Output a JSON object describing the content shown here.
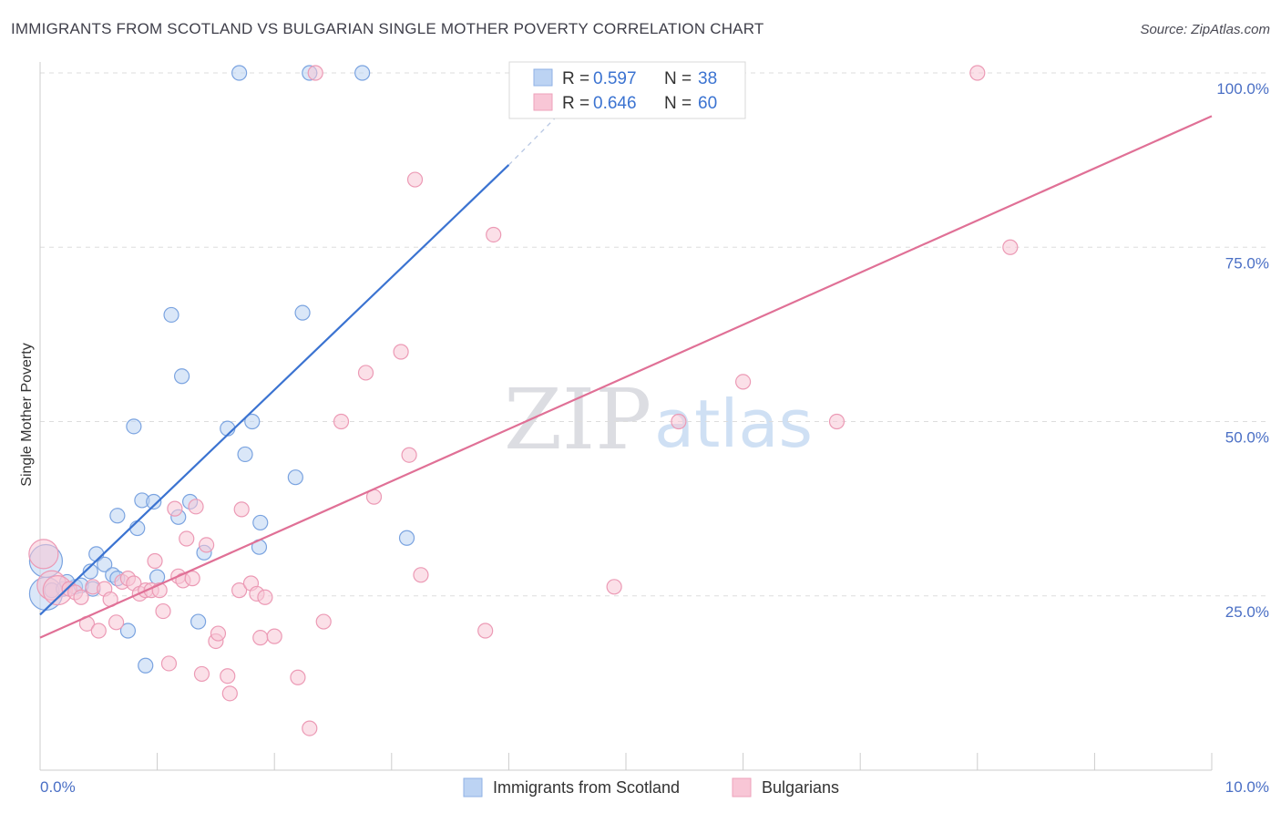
{
  "header": {
    "title": "IMMIGRANTS FROM SCOTLAND VS BULGARIAN SINGLE MOTHER POVERTY CORRELATION CHART",
    "source": "Source: ZipAtlas.com"
  },
  "watermark": {
    "zip": "ZIP",
    "atlas": "atlas"
  },
  "legend": {
    "blue": {
      "r_label": "R =",
      "r_value": "0.597",
      "n_label": "N =",
      "n_value": "38"
    },
    "pink": {
      "r_label": "R =",
      "r_value": "0.646",
      "n_label": "N =",
      "n_value": "60"
    }
  },
  "bottom_legend": {
    "blue": "Immigrants from Scotland",
    "pink": "Bulgarians"
  },
  "colors": {
    "blue": "#3b73d1",
    "blue_fill": "#bcd3f3",
    "pink": "#e07096",
    "pink_fill": "#f8c6d6",
    "grid": "#dddddd",
    "tick_label": "#4a6fc5"
  },
  "chart_data": {
    "type": "scatter",
    "title": "IMMIGRANTS FROM SCOTLAND VS BULGARIAN SINGLE MOTHER POVERTY CORRELATION CHART",
    "xlabel": "",
    "ylabel": "Single Mother Poverty",
    "xlim": [
      0,
      10
    ],
    "ylim": [
      0,
      100
    ],
    "x_tick_labels": [
      "0.0%",
      "10.0%"
    ],
    "y_ticks": [
      25,
      50,
      75,
      100
    ],
    "y_tick_labels": [
      "25.0%",
      "50.0%",
      "75.0%",
      "100.0%"
    ],
    "series": [
      {
        "name": "Immigrants from Scotland",
        "color": "#3b73d1",
        "r": 0.597,
        "n": 38,
        "trend": {
          "x": [
            0,
            4.0
          ],
          "y": [
            22.3,
            86.8
          ],
          "dashed_to": [
            4.6,
            97.0
          ]
        },
        "points": [
          [
            0.05,
            30.0,
            26
          ],
          [
            0.05,
            25.3,
            14
          ],
          [
            0.1,
            25.8,
            10
          ],
          [
            0.2,
            26.0,
            10
          ],
          [
            0.3,
            26.3,
            10
          ],
          [
            0.23,
            27.0,
            10
          ],
          [
            0.35,
            26.5,
            10
          ],
          [
            0.45,
            26.0,
            10
          ],
          [
            0.43,
            28.5,
            10
          ],
          [
            0.48,
            31.0,
            10
          ],
          [
            0.55,
            29.5,
            10
          ],
          [
            0.62,
            28.0,
            10
          ],
          [
            0.66,
            27.5,
            10
          ],
          [
            0.66,
            36.5,
            10
          ],
          [
            0.75,
            20.0,
            10
          ],
          [
            0.8,
            49.3,
            10
          ],
          [
            0.83,
            34.7,
            10
          ],
          [
            0.87,
            38.7,
            10
          ],
          [
            0.9,
            15.0,
            10
          ],
          [
            0.97,
            38.5,
            10
          ],
          [
            1.0,
            27.7,
            10
          ],
          [
            1.12,
            65.3,
            10
          ],
          [
            1.18,
            36.3,
            10
          ],
          [
            1.21,
            56.5,
            10
          ],
          [
            1.28,
            38.5,
            10
          ],
          [
            1.35,
            21.3,
            10
          ],
          [
            1.4,
            31.2,
            10
          ],
          [
            1.7,
            100.0,
            10
          ],
          [
            1.6,
            49.0,
            10
          ],
          [
            1.75,
            45.3,
            10
          ],
          [
            1.81,
            50.0,
            10
          ],
          [
            1.87,
            32.0,
            10
          ],
          [
            1.88,
            35.5,
            10
          ],
          [
            2.18,
            42.0,
            10
          ],
          [
            2.24,
            65.6,
            10
          ],
          [
            2.3,
            100.0,
            10
          ],
          [
            2.75,
            100.0,
            10
          ],
          [
            3.13,
            33.3,
            10
          ]
        ]
      },
      {
        "name": "Bulgarians",
        "color": "#e07096",
        "r": 0.646,
        "n": 60,
        "trend": {
          "x": [
            0,
            10.0
          ],
          "y": [
            19.0,
            93.8
          ]
        },
        "points": [
          [
            0.03,
            31.0,
            22
          ],
          [
            0.1,
            26.5,
            12
          ],
          [
            0.15,
            25.8,
            12
          ],
          [
            0.25,
            26.0,
            10
          ],
          [
            0.3,
            25.5,
            10
          ],
          [
            0.35,
            24.8,
            10
          ],
          [
            0.4,
            21.0,
            10
          ],
          [
            0.45,
            26.3,
            10
          ],
          [
            0.5,
            20.0,
            10
          ],
          [
            0.55,
            26.0,
            10
          ],
          [
            0.6,
            24.5,
            10
          ],
          [
            0.65,
            21.2,
            10
          ],
          [
            0.7,
            27.0,
            10
          ],
          [
            0.75,
            27.5,
            10
          ],
          [
            0.8,
            26.8,
            10
          ],
          [
            0.85,
            25.3,
            10
          ],
          [
            0.9,
            25.8,
            10
          ],
          [
            0.95,
            25.8,
            10
          ],
          [
            0.98,
            30.0,
            10
          ],
          [
            1.02,
            25.8,
            10
          ],
          [
            1.05,
            22.8,
            10
          ],
          [
            1.1,
            15.3,
            10
          ],
          [
            1.18,
            27.8,
            10
          ],
          [
            1.22,
            27.2,
            10
          ],
          [
            1.25,
            33.2,
            10
          ],
          [
            1.3,
            27.5,
            10
          ],
          [
            1.33,
            37.8,
            10
          ],
          [
            1.38,
            13.8,
            10
          ],
          [
            1.42,
            32.3,
            10
          ],
          [
            1.5,
            18.5,
            10
          ],
          [
            1.52,
            19.6,
            10
          ],
          [
            1.6,
            13.5,
            10
          ],
          [
            1.62,
            11.0,
            10
          ],
          [
            1.7,
            25.8,
            10
          ],
          [
            1.72,
            37.4,
            10
          ],
          [
            1.8,
            26.8,
            10
          ],
          [
            1.85,
            25.3,
            10
          ],
          [
            1.88,
            19.0,
            10
          ],
          [
            1.92,
            24.8,
            10
          ],
          [
            2.0,
            19.2,
            10
          ],
          [
            2.2,
            13.3,
            10
          ],
          [
            2.3,
            6.0,
            10
          ],
          [
            2.35,
            100.0,
            10
          ],
          [
            2.42,
            21.3,
            10
          ],
          [
            2.57,
            50.0,
            10
          ],
          [
            2.78,
            57.0,
            10
          ],
          [
            2.85,
            39.2,
            10
          ],
          [
            3.08,
            60.0,
            10
          ],
          [
            3.15,
            45.2,
            10
          ],
          [
            3.2,
            84.7,
            10
          ],
          [
            3.25,
            28.0,
            10
          ],
          [
            3.8,
            20.0,
            10
          ],
          [
            3.87,
            76.8,
            10
          ],
          [
            4.9,
            26.3,
            10
          ],
          [
            5.45,
            50.0,
            10
          ],
          [
            6.0,
            55.7,
            10
          ],
          [
            6.8,
            50.0,
            10
          ],
          [
            8.0,
            100.0,
            10
          ],
          [
            8.28,
            75.0,
            10
          ],
          [
            1.15,
            37.5,
            10
          ]
        ]
      }
    ]
  }
}
